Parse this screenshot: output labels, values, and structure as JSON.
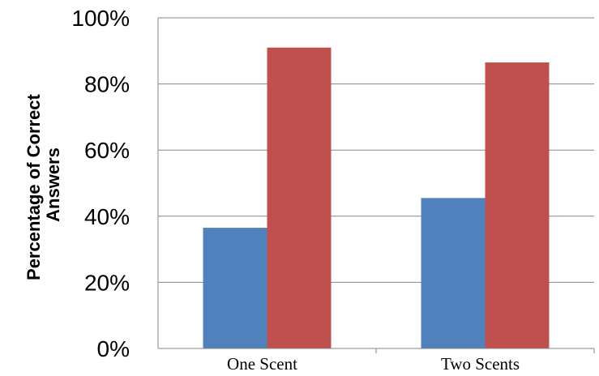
{
  "chart_data": {
    "type": "bar",
    "categories": [
      "One Scent",
      "Two Scents"
    ],
    "series": [
      {
        "values": [
          36.5,
          45.5
        ],
        "color": "#4F81BD"
      },
      {
        "values": [
          91,
          86.5
        ],
        "color": "#C0504D"
      }
    ],
    "xlabel": "",
    "ylabel_lines": [
      "Percentage  of Correct",
      "Answers"
    ],
    "ylim": [
      0,
      100
    ],
    "yticks": [
      "0%",
      "20%",
      "40%",
      "60%",
      "80%",
      "100%"
    ],
    "grid": true,
    "legend": "none"
  },
  "colors": {
    "grid": "#868686",
    "axis": "#868686"
  }
}
